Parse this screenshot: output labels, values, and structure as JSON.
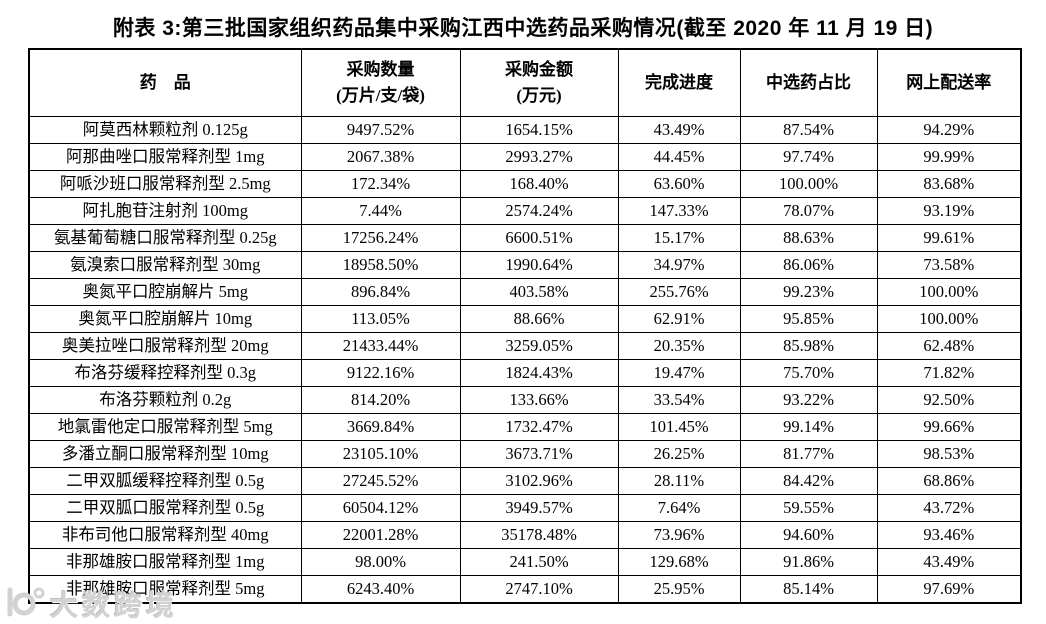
{
  "title": "附表 3:第三批国家组织药品集中采购江西中选药品采购情况(截至 2020 年 11 月 19 日)",
  "colors": {
    "table_border": "#000000",
    "text": "#000000",
    "watermark": "#d2d2d2"
  },
  "watermark": {
    "logo_icon": "brand-logo",
    "text": "大数跨境"
  },
  "table": {
    "columns": [
      {
        "label": "药　品",
        "sublabel": ""
      },
      {
        "label": "采购数量",
        "sublabel": "(万片/支/袋)"
      },
      {
        "label": "采购金额",
        "sublabel": "(万元)"
      },
      {
        "label": "完成进度",
        "sublabel": ""
      },
      {
        "label": "中选药占比",
        "sublabel": ""
      },
      {
        "label": "网上配送率",
        "sublabel": ""
      }
    ],
    "rows": [
      [
        "阿莫西林颗粒剂 0.125g",
        "9497.52%",
        "1654.15%",
        "43.49%",
        "87.54%",
        "94.29%"
      ],
      [
        "阿那曲唑口服常释剂型 1mg",
        "2067.38%",
        "2993.27%",
        "44.45%",
        "97.74%",
        "99.99%"
      ],
      [
        "阿哌沙班口服常释剂型 2.5mg",
        "172.34%",
        "168.40%",
        "63.60%",
        "100.00%",
        "83.68%"
      ],
      [
        "阿扎胞苷注射剂 100mg",
        "7.44%",
        "2574.24%",
        "147.33%",
        "78.07%",
        "93.19%"
      ],
      [
        "氨基葡萄糖口服常释剂型 0.25g",
        "17256.24%",
        "6600.51%",
        "15.17%",
        "88.63%",
        "99.61%"
      ],
      [
        "氨溴索口服常释剂型 30mg",
        "18958.50%",
        "1990.64%",
        "34.97%",
        "86.06%",
        "73.58%"
      ],
      [
        "奥氮平口腔崩解片 5mg",
        "896.84%",
        "403.58%",
        "255.76%",
        "99.23%",
        "100.00%"
      ],
      [
        "奥氮平口腔崩解片 10mg",
        "113.05%",
        "88.66%",
        "62.91%",
        "95.85%",
        "100.00%"
      ],
      [
        "奥美拉唑口服常释剂型 20mg",
        "21433.44%",
        "3259.05%",
        "20.35%",
        "85.98%",
        "62.48%"
      ],
      [
        "布洛芬缓释控释剂型 0.3g",
        "9122.16%",
        "1824.43%",
        "19.47%",
        "75.70%",
        "71.82%"
      ],
      [
        "布洛芬颗粒剂 0.2g",
        "814.20%",
        "133.66%",
        "33.54%",
        "93.22%",
        "92.50%"
      ],
      [
        "地氯雷他定口服常释剂型 5mg",
        "3669.84%",
        "1732.47%",
        "101.45%",
        "99.14%",
        "99.66%"
      ],
      [
        "多潘立酮口服常释剂型 10mg",
        "23105.10%",
        "3673.71%",
        "26.25%",
        "81.77%",
        "98.53%"
      ],
      [
        "二甲双胍缓释控释剂型 0.5g",
        "27245.52%",
        "3102.96%",
        "28.11%",
        "84.42%",
        "68.86%"
      ],
      [
        "二甲双胍口服常释剂型 0.5g",
        "60504.12%",
        "3949.57%",
        "7.64%",
        "59.55%",
        "43.72%"
      ],
      [
        "非布司他口服常释剂型 40mg",
        "22001.28%",
        "35178.48%",
        "73.96%",
        "94.60%",
        "93.46%"
      ],
      [
        "非那雄胺口服常释剂型 1mg",
        "98.00%",
        "241.50%",
        "129.68%",
        "91.86%",
        "43.49%"
      ],
      [
        "非那雄胺口服常释剂型 5mg",
        "6243.40%",
        "2747.10%",
        "25.95%",
        "85.14%",
        "97.69%"
      ]
    ]
  }
}
